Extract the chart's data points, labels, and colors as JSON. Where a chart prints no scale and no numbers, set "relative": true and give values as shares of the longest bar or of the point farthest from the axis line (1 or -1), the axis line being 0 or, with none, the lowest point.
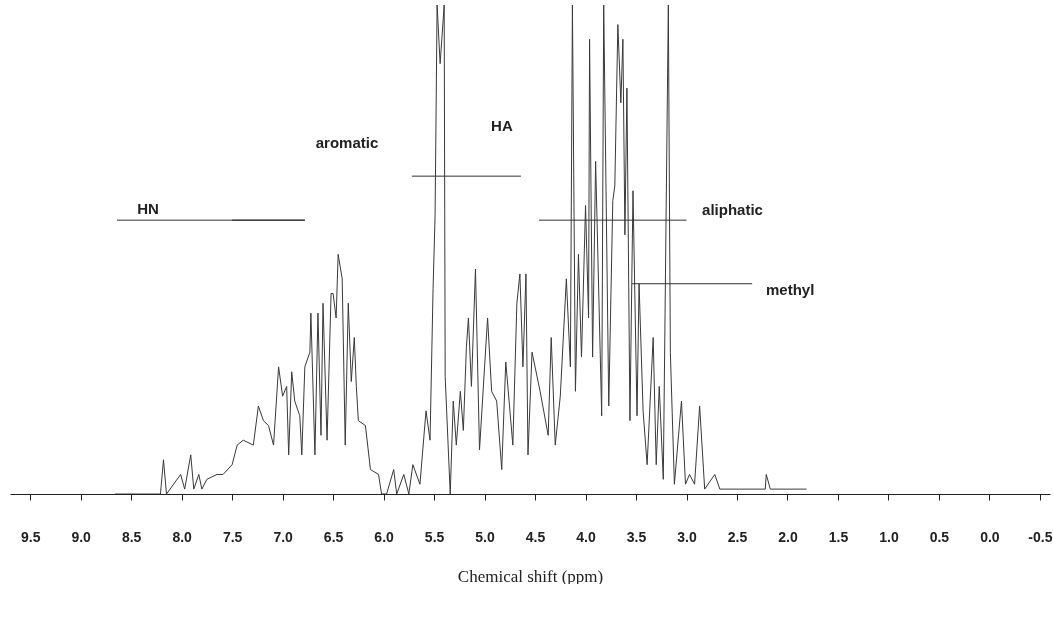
{
  "chart_data": {
    "type": "line",
    "relative": true,
    "xlabel": "Chemical shift (ppm)",
    "xlim": [
      9.7,
      -0.6
    ],
    "xticks": [
      9.5,
      {
        "value": 9,
        "label": "9.0"
      },
      8.5,
      {
        "value": 8,
        "label": "8.0"
      },
      7.5,
      {
        "value": 7,
        "label": "7.0"
      },
      6.5,
      {
        "value": 6,
        "label": "6.0"
      },
      5.5,
      {
        "value": 5,
        "label": "5.0"
      },
      4.5,
      {
        "value": 4,
        "label": "4.0"
      },
      3.5,
      {
        "value": 3,
        "label": "3.0"
      },
      2.5,
      {
        "value": 2,
        "label": "2.0"
      },
      1.5,
      {
        "value": 1,
        "label": "1.0"
      },
      0.5,
      {
        "value": 0,
        "label": "0.0"
      },
      -0.5
    ],
    "series": [
      {
        "color": "#3a3a3a",
        "x": [
          8.66,
          8.21,
          8.18,
          8.15,
          8.01,
          7.97,
          7.91,
          7.88,
          7.83,
          7.8,
          7.75,
          7.65,
          7.59,
          7.5,
          7.45,
          7.39,
          7.29,
          7.24,
          7.19,
          7.14,
          7.09,
          7.04,
          7.0,
          6.96,
          6.94,
          6.91,
          6.88,
          6.83,
          6.81,
          6.78,
          6.73,
          6.72,
          6.68,
          6.65,
          6.62,
          6.6,
          6.56,
          6.52,
          6.5,
          6.47,
          6.45,
          6.41,
          6.38,
          6.35,
          6.32,
          6.29,
          6.27,
          6.25,
          6.18,
          6.13,
          6.05,
          6.02,
          5.97,
          5.9,
          5.87,
          5.8,
          5.75,
          5.71,
          5.64,
          5.58,
          5.54,
          5.51,
          5.49,
          5.47,
          5.44,
          5.4,
          5.39,
          5.34,
          5.31,
          5.28,
          5.24,
          5.21,
          5.18,
          5.16,
          5.13,
          5.09,
          5.05,
          5.0,
          4.97,
          4.93,
          4.88,
          4.83,
          4.79,
          4.72,
          4.68,
          4.65,
          4.62,
          4.59,
          4.57,
          4.53,
          4.45,
          4.37,
          4.34,
          4.3,
          4.25,
          4.19,
          4.15,
          4.13,
          4.1,
          4.07,
          4.04,
          4.0,
          3.97,
          3.96,
          3.93,
          3.9,
          3.84,
          3.82,
          3.77,
          3.73,
          3.71,
          3.68,
          3.65,
          3.63,
          3.61,
          3.59,
          3.56,
          3.53,
          3.49,
          3.47,
          3.43,
          3.39,
          3.33,
          3.3,
          3.27,
          3.23,
          3.18,
          3.16,
          3.12,
          3.05,
          3.01,
          2.97,
          2.92,
          2.87,
          2.82,
          2.72,
          2.67,
          2.22,
          2.21,
          2.17,
          1.81
        ],
        "values": [
          0,
          0,
          0.07,
          0,
          0.04,
          0.01,
          0.08,
          0.01,
          0.04,
          0.01,
          0.03,
          0.04,
          0.04,
          0.06,
          0.1,
          0.11,
          0.1,
          0.18,
          0.15,
          0.14,
          0.1,
          0.26,
          0.2,
          0.22,
          0.08,
          0.25,
          0.19,
          0.16,
          0.08,
          0.26,
          0.29,
          0.37,
          0.08,
          0.37,
          0.12,
          0.39,
          0.11,
          0.41,
          0.41,
          0.36,
          0.49,
          0.44,
          0.1,
          0.39,
          0.23,
          0.32,
          0.22,
          0.15,
          0.14,
          0.05,
          0.04,
          0,
          0,
          0.05,
          0,
          0.04,
          0,
          0.06,
          0.02,
          0.17,
          0.11,
          0.42,
          0.57,
          1,
          0.88,
          1,
          0.24,
          0,
          0.19,
          0.1,
          0.21,
          0.13,
          0.3,
          0.36,
          0.22,
          0.46,
          0.09,
          0.26,
          0.36,
          0.21,
          0.19,
          0.05,
          0.27,
          0.1,
          0.39,
          0.45,
          0.26,
          0.45,
          0.08,
          0.29,
          0.21,
          0.12,
          0.32,
          0.1,
          0.2,
          0.44,
          0.26,
          1,
          0.21,
          0.49,
          0.28,
          0.59,
          0.36,
          0.93,
          0.28,
          0.68,
          0.16,
          1,
          0.18,
          0.6,
          0.63,
          0.96,
          0.8,
          0.93,
          0.53,
          0.83,
          0.15,
          0.62,
          0.16,
          0.43,
          0.17,
          0.06,
          0.32,
          0.06,
          0.22,
          0.03,
          1,
          0.29,
          0.02,
          0.19,
          0.02,
          0.04,
          0.02,
          0.18,
          0.01,
          0.04,
          0.01,
          0.01,
          0.04,
          0.01,
          0.01
        ]
      },
      {
        "color": "#333333",
        "x": [
          8.64,
          6.78
        ],
        "values": [
          0.56,
          0.56
        ]
      },
      {
        "color": "#222222",
        "x": [
          7.5,
          6.78
        ],
        "values": [
          0.56,
          0.56
        ]
      },
      {
        "color": "#333333",
        "x": [
          5.72,
          4.64
        ],
        "values": [
          0.65,
          0.65
        ]
      },
      {
        "color": "#333333",
        "x": [
          4.46,
          3.0
        ],
        "values": [
          0.56,
          0.56
        ]
      },
      {
        "color": "#333333",
        "x": [
          3.54,
          2.35
        ],
        "values": [
          0.43,
          0.43
        ]
      }
    ],
    "annotations": [
      {
        "text": "HN",
        "x": 8.64,
        "y": 0.56
      },
      "aromatic",
      {
        "text": "HA",
        "x": 4.64,
        "y": 0.65
      },
      {
        "text": "aliphatic",
        "x": 3.0,
        "y": 0.56
      },
      {
        "text": "methyl",
        "x": 2.35,
        "y": 0.43
      }
    ]
  }
}
